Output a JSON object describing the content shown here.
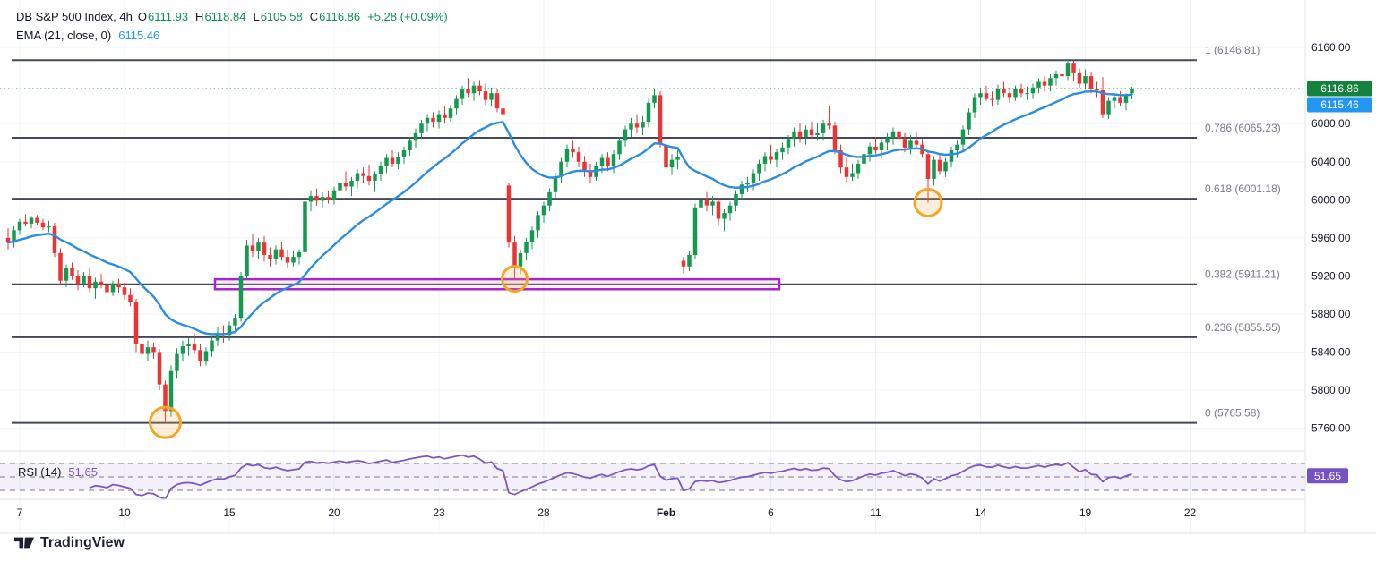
{
  "header": {
    "title": "DB S&P 500 Index, 4h",
    "ohlc": {
      "o_label": "O",
      "o": "6111.93",
      "h_label": "H",
      "h": "6118.84",
      "l_label": "L",
      "l": "6105.58",
      "c_label": "C",
      "c": "6116.86",
      "change": "+5.28 (+0.09%)"
    },
    "ema_label": "EMA (21, close, 0)",
    "ema_value": "6115.46"
  },
  "watermark": {
    "text": "TradingView"
  },
  "rsi_pane": {
    "label": "RSI (14)",
    "value": "51.65",
    "badge": "51.65",
    "levels": [
      70,
      50,
      30
    ]
  },
  "price_axis": {
    "ticks": [
      6160,
      6080,
      6040,
      6000,
      5960,
      5920,
      5880,
      5840,
      5800,
      5760
    ],
    "badges": [
      {
        "text": "6116.86",
        "kind": "last-price"
      },
      {
        "text": "6115.46",
        "kind": "ema-value"
      },
      {
        "text": "51.65",
        "kind": "rsi-value"
      }
    ]
  },
  "time_axis": {
    "labels": [
      {
        "text": "7",
        "bar": 2,
        "bold": false
      },
      {
        "text": "10",
        "bar": 20,
        "bold": false
      },
      {
        "text": "15",
        "bar": 38,
        "bold": false
      },
      {
        "text": "20",
        "bar": 56,
        "bold": false
      },
      {
        "text": "23",
        "bar": 74,
        "bold": false
      },
      {
        "text": "28",
        "bar": 92,
        "bold": false
      },
      {
        "text": "Feb",
        "bar": 113,
        "bold": true
      },
      {
        "text": "6",
        "bar": 131,
        "bold": false
      },
      {
        "text": "11",
        "bar": 149,
        "bold": false
      },
      {
        "text": "14",
        "bar": 167,
        "bold": false
      },
      {
        "text": "19",
        "bar": 185,
        "bold": false
      },
      {
        "text": "22",
        "bar": 203,
        "bold": false
      }
    ]
  },
  "colors": {
    "up": "#149a4e",
    "down": "#eb3434",
    "ema": "#2b8de0",
    "rsi": "#7e57c2",
    "fib_line": "#45485a",
    "box": "#a826c9",
    "box_fill": "rgba(230,180,235,0.22)",
    "circle": "#f5a623",
    "circle_fill": "rgba(246,176,90,0.22)",
    "badge_last": "#12823d",
    "badge_ema": "#2196f3",
    "badge_rsi": "#7452c4",
    "grid": "#f0f3fa",
    "separator": "#e0e3eb",
    "axis_text": "#131722",
    "muted_text": "#787b86",
    "current_line": "#2f9b5a",
    "rsi_band": "rgba(126,87,194,0.09)"
  },
  "chart_data": {
    "type": "candlestick",
    "symbol": "DB S&P 500 Index",
    "interval": "4h",
    "last_bar": {
      "open": 6111.93,
      "high": 6118.84,
      "low": 6105.58,
      "close": 6116.86,
      "change": "+5.28 (+0.09%)"
    },
    "price_axis_range": [
      5737,
      6210
    ],
    "indicators": [
      {
        "name": "EMA",
        "params": [
          21,
          "close",
          0
        ],
        "value": 6115.46
      },
      {
        "name": "RSI",
        "params": [
          14
        ],
        "value": 51.65,
        "levels": [
          70,
          50,
          30
        ]
      }
    ],
    "fib_levels": [
      {
        "label": "1 (6146.81)",
        "ratio": 1,
        "price": 6146.81
      },
      {
        "label": "0.786 (6065.23)",
        "ratio": 0.786,
        "price": 6065.23
      },
      {
        "label": "0.618 (6001.18)",
        "ratio": 0.618,
        "price": 6001.18
      },
      {
        "label": "0.382 (5911.21)",
        "ratio": 0.382,
        "price": 5911.21
      },
      {
        "label": "0.236 (5855.55)",
        "ratio": 0.236,
        "price": 5855.55
      },
      {
        "label": "0 (5765.58)",
        "ratio": 0,
        "price": 5765.58
      }
    ],
    "annotations": {
      "circles": [
        {
          "bar": 27,
          "price": 5766,
          "r": 17
        },
        {
          "bar": 87,
          "price": 5917,
          "r": 14
        },
        {
          "bar": 158,
          "price": 5997,
          "r": 15
        }
      ],
      "box": {
        "bar_start": 36,
        "bar_end": 132,
        "price_top": 5916.5,
        "price_bottom": 5906
      }
    },
    "candles": [
      [
        5960,
        5970,
        5948,
        5955
      ],
      [
        5955,
        5972,
        5950,
        5968
      ],
      [
        5968,
        5980,
        5963,
        5977
      ],
      [
        5977,
        5985,
        5972,
        5975
      ],
      [
        5975,
        5983,
        5970,
        5981
      ],
      [
        5981,
        5984,
        5973,
        5976
      ],
      [
        5976,
        5980,
        5968,
        5971
      ],
      [
        5971,
        5978,
        5966,
        5972
      ],
      [
        5972,
        5976,
        5940,
        5944
      ],
      [
        5944,
        5949,
        5910,
        5915
      ],
      [
        5915,
        5932,
        5908,
        5928
      ],
      [
        5928,
        5934,
        5916,
        5920
      ],
      [
        5920,
        5926,
        5905,
        5912
      ],
      [
        5912,
        5924,
        5908,
        5920
      ],
      [
        5920,
        5929,
        5903,
        5907
      ],
      [
        5907,
        5918,
        5896,
        5914
      ],
      [
        5914,
        5922,
        5907,
        5910
      ],
      [
        5910,
        5916,
        5898,
        5903
      ],
      [
        5903,
        5915,
        5899,
        5912
      ],
      [
        5912,
        5917,
        5902,
        5908
      ],
      [
        5908,
        5913,
        5895,
        5900
      ],
      [
        5900,
        5907,
        5888,
        5893
      ],
      [
        5893,
        5896,
        5840,
        5848
      ],
      [
        5848,
        5856,
        5832,
        5838
      ],
      [
        5838,
        5852,
        5830,
        5845
      ],
      [
        5845,
        5850,
        5833,
        5840
      ],
      [
        5840,
        5843,
        5800,
        5806
      ],
      [
        5806,
        5810,
        5766,
        5778
      ],
      [
        5778,
        5826,
        5772,
        5820
      ],
      [
        5820,
        5844,
        5812,
        5838
      ],
      [
        5838,
        5852,
        5830,
        5846
      ],
      [
        5846,
        5855,
        5836,
        5848
      ],
      [
        5848,
        5860,
        5838,
        5842
      ],
      [
        5842,
        5848,
        5825,
        5830
      ],
      [
        5830,
        5845,
        5826,
        5841
      ],
      [
        5841,
        5856,
        5835,
        5852
      ],
      [
        5852,
        5866,
        5846,
        5860
      ],
      [
        5860,
        5868,
        5850,
        5858
      ],
      [
        5858,
        5872,
        5852,
        5868
      ],
      [
        5868,
        5880,
        5860,
        5876
      ],
      [
        5876,
        5924,
        5872,
        5920
      ],
      [
        5920,
        5958,
        5916,
        5952
      ],
      [
        5952,
        5964,
        5940,
        5946
      ],
      [
        5946,
        5960,
        5938,
        5955
      ],
      [
        5955,
        5962,
        5935,
        5942
      ],
      [
        5942,
        5950,
        5930,
        5938
      ],
      [
        5938,
        5952,
        5932,
        5948
      ],
      [
        5948,
        5956,
        5936,
        5940
      ],
      [
        5940,
        5948,
        5928,
        5934
      ],
      [
        5934,
        5946,
        5930,
        5940
      ],
      [
        5940,
        5948,
        5932,
        5945
      ],
      [
        5945,
        6002,
        5942,
        5998
      ],
      [
        5998,
        6010,
        5988,
        6004
      ],
      [
        6004,
        6012,
        5994,
        5999
      ],
      [
        5999,
        6008,
        5992,
        6003
      ],
      [
        6003,
        6010,
        5996,
        6000
      ],
      [
        6000,
        6014,
        5995,
        6010
      ],
      [
        6010,
        6022,
        6002,
        6018
      ],
      [
        6018,
        6030,
        6010,
        6014
      ],
      [
        6014,
        6024,
        6004,
        6020
      ],
      [
        6020,
        6032,
        6012,
        6028
      ],
      [
        6028,
        6034,
        6018,
        6025
      ],
      [
        6025,
        6037,
        6015,
        6020
      ],
      [
        6020,
        6030,
        6008,
        6027
      ],
      [
        6027,
        6040,
        6020,
        6036
      ],
      [
        6036,
        6048,
        6028,
        6044
      ],
      [
        6044,
        6052,
        6034,
        6038
      ],
      [
        6038,
        6050,
        6032,
        6045
      ],
      [
        6045,
        6056,
        6038,
        6052
      ],
      [
        6052,
        6066,
        6046,
        6062
      ],
      [
        6062,
        6075,
        6055,
        6070
      ],
      [
        6070,
        6084,
        6064,
        6080
      ],
      [
        6080,
        6090,
        6072,
        6086
      ],
      [
        6086,
        6092,
        6076,
        6082
      ],
      [
        6082,
        6094,
        6075,
        6090
      ],
      [
        6090,
        6098,
        6080,
        6086
      ],
      [
        6086,
        6100,
        6082,
        6096
      ],
      [
        6096,
        6110,
        6090,
        6106
      ],
      [
        6106,
        6120,
        6100,
        6116
      ],
      [
        6116,
        6128,
        6108,
        6112
      ],
      [
        6112,
        6124,
        6104,
        6120
      ],
      [
        6120,
        6126,
        6110,
        6114
      ],
      [
        6114,
        6122,
        6100,
        6105
      ],
      [
        6105,
        6118,
        6098,
        6112
      ],
      [
        6112,
        6116,
        6092,
        6096
      ],
      [
        6096,
        6104,
        6086,
        6090
      ],
      [
        6015,
        6018,
        5950,
        5955
      ],
      [
        5955,
        5962,
        5917,
        5930
      ],
      [
        5930,
        5948,
        5922,
        5944
      ],
      [
        5944,
        5960,
        5936,
        5956
      ],
      [
        5956,
        5972,
        5948,
        5968
      ],
      [
        5968,
        5988,
        5960,
        5984
      ],
      [
        5984,
        5998,
        5976,
        5994
      ],
      [
        5994,
        6012,
        5988,
        6008
      ],
      [
        6008,
        6028,
        6002,
        6024
      ],
      [
        6024,
        6044,
        6018,
        6040
      ],
      [
        6040,
        6058,
        6034,
        6054
      ],
      [
        6054,
        6062,
        6044,
        6050
      ],
      [
        6050,
        6056,
        6034,
        6040
      ],
      [
        6040,
        6046,
        6024,
        6030
      ],
      [
        6030,
        6038,
        6018,
        6024
      ],
      [
        6024,
        6040,
        6020,
        6036
      ],
      [
        6036,
        6048,
        6028,
        6044
      ],
      [
        6044,
        6050,
        6030,
        6035
      ],
      [
        6035,
        6052,
        6028,
        6048
      ],
      [
        6048,
        6066,
        6042,
        6062
      ],
      [
        6062,
        6078,
        6056,
        6074
      ],
      [
        6074,
        6086,
        6066,
        6080
      ],
      [
        6080,
        6090,
        6070,
        6076
      ],
      [
        6076,
        6088,
        6068,
        6082
      ],
      [
        6082,
        6106,
        6076,
        6102
      ],
      [
        6102,
        6117,
        6096,
        6110
      ],
      [
        6110,
        6114,
        6055,
        6058
      ],
      [
        6058,
        6064,
        6028,
        6034
      ],
      [
        6034,
        6048,
        6026,
        6042
      ],
      [
        6042,
        6052,
        6032,
        6045
      ],
      [
        5936,
        5940,
        5923,
        5930
      ],
      [
        5930,
        5946,
        5925,
        5942
      ],
      [
        5942,
        5996,
        5938,
        5992
      ],
      [
        5992,
        6006,
        5984,
        6000
      ],
      [
        6000,
        6008,
        5988,
        5994
      ],
      [
        5994,
        6004,
        5984,
        5998
      ],
      [
        5998,
        6002,
        5974,
        5980
      ],
      [
        5980,
        5990,
        5967,
        5986
      ],
      [
        5986,
        5998,
        5978,
        5994
      ],
      [
        5994,
        6010,
        5988,
        6006
      ],
      [
        6006,
        6020,
        6000,
        6016
      ],
      [
        6016,
        6024,
        6008,
        6018
      ],
      [
        6018,
        6032,
        6010,
        6028
      ],
      [
        6028,
        6042,
        6020,
        6038
      ],
      [
        6038,
        6050,
        6030,
        6046
      ],
      [
        6046,
        6058,
        6038,
        6042
      ],
      [
        6042,
        6054,
        6034,
        6050
      ],
      [
        6050,
        6060,
        6042,
        6055
      ],
      [
        6055,
        6068,
        6048,
        6064
      ],
      [
        6064,
        6076,
        6056,
        6072
      ],
      [
        6072,
        6080,
        6060,
        6066
      ],
      [
        6066,
        6078,
        6058,
        6074
      ],
      [
        6074,
        6082,
        6064,
        6068
      ],
      [
        6068,
        6080,
        6062,
        6070
      ],
      [
        6070,
        6084,
        6062,
        6080
      ],
      [
        6080,
        6099,
        6074,
        6078
      ],
      [
        6078,
        6082,
        6048,
        6052
      ],
      [
        6052,
        6058,
        6028,
        6034
      ],
      [
        6034,
        6044,
        6018,
        6024
      ],
      [
        6024,
        6038,
        6020,
        6028
      ],
      [
        6028,
        6042,
        6022,
        6038
      ],
      [
        6038,
        6052,
        6032,
        6048
      ],
      [
        6048,
        6060,
        6040,
        6056
      ],
      [
        6056,
        6066,
        6048,
        6052
      ],
      [
        6052,
        6064,
        6044,
        6060
      ],
      [
        6060,
        6070,
        6052,
        6065
      ],
      [
        6065,
        6076,
        6058,
        6072
      ],
      [
        6072,
        6078,
        6060,
        6064
      ],
      [
        6064,
        6070,
        6050,
        6055
      ],
      [
        6055,
        6068,
        6048,
        6062
      ],
      [
        6062,
        6072,
        6054,
        6058
      ],
      [
        6058,
        6064,
        6044,
        6048
      ],
      [
        6048,
        6052,
        5997,
        6022
      ],
      [
        6022,
        6046,
        6015,
        6042
      ],
      [
        6042,
        6048,
        6026,
        6030
      ],
      [
        6030,
        6044,
        6024,
        6040
      ],
      [
        6040,
        6056,
        6034,
        6052
      ],
      [
        6052,
        6062,
        6044,
        6058
      ],
      [
        6058,
        6078,
        6052,
        6074
      ],
      [
        6074,
        6096,
        6068,
        6092
      ],
      [
        6092,
        6112,
        6086,
        6108
      ],
      [
        6108,
        6118,
        6100,
        6112
      ],
      [
        6112,
        6120,
        6104,
        6106
      ],
      [
        6106,
        6114,
        6098,
        6105
      ],
      [
        6105,
        6121,
        6100,
        6117
      ],
      [
        6117,
        6124,
        6108,
        6112
      ],
      [
        6112,
        6118,
        6102,
        6108
      ],
      [
        6108,
        6120,
        6104,
        6116
      ],
      [
        6116,
        6122,
        6108,
        6112
      ],
      [
        6112,
        6119,
        6105,
        6112
      ],
      [
        6112,
        6122,
        6106,
        6118
      ],
      [
        6118,
        6128,
        6112,
        6124
      ],
      [
        6124,
        6130,
        6114,
        6120
      ],
      [
        6120,
        6132,
        6114,
        6128
      ],
      [
        6128,
        6136,
        6120,
        6132
      ],
      [
        6132,
        6138,
        6124,
        6130
      ],
      [
        6130,
        6147,
        6126,
        6144
      ],
      [
        6144,
        6146,
        6125,
        6133
      ],
      [
        6133,
        6138,
        6118,
        6122
      ],
      [
        6122,
        6137,
        6116,
        6130
      ],
      [
        6130,
        6134,
        6112,
        6116
      ],
      [
        6116,
        6124,
        6108,
        6115
      ],
      [
        6115,
        6129,
        6086,
        6090
      ],
      [
        6090,
        6108,
        6085,
        6104
      ],
      [
        6104,
        6112,
        6096,
        6108
      ],
      [
        6108,
        6114,
        6098,
        6102
      ],
      [
        6102,
        6112,
        6094,
        6110
      ],
      [
        6111.93,
        6118.84,
        6105.58,
        6116.86
      ]
    ]
  }
}
